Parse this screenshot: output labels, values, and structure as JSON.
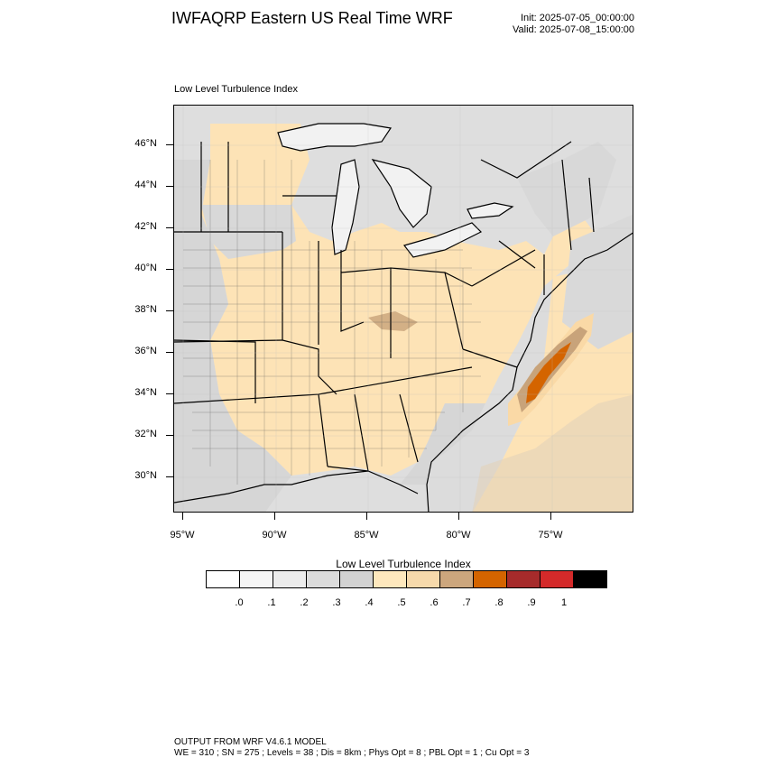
{
  "header": {
    "title": "IWFAQRP Eastern US Real Time WRF",
    "init": "Init: 2025-07-05_00:00:00",
    "valid": "Valid: 2025-07-08_15:00:00"
  },
  "plot": {
    "title": "Low Level Turbulence Index",
    "lat_labels": [
      "46°N",
      "44°N",
      "42°N",
      "40°N",
      "38°N",
      "36°N",
      "34°N",
      "32°N",
      "30°N"
    ],
    "lon_labels": [
      "95°W",
      "90°W",
      "85°W",
      "80°W",
      "75°W"
    ],
    "colors": {
      "ocean": "#dcdcdc",
      "lake": "#f2f2f2",
      "high_turb": "#d46400",
      "mid_turb": "#c8a37a",
      "moderate": "#fde3b6"
    }
  },
  "legend": {
    "title": "Low Level Turbulence Index",
    "colors": [
      "#ffffff",
      "#f5f5f5",
      "#ececec",
      "#dcdcdc",
      "#d2d2d2",
      "#fee8bd",
      "#f6d9ab",
      "#cca67d",
      "#d46400",
      "#a62b2b",
      "#d42a2a",
      "#000000"
    ],
    "ticks": [
      ".0",
      ".1",
      ".2",
      ".3",
      ".4",
      ".5",
      ".6",
      ".7",
      ".8",
      ".9",
      "1"
    ]
  },
  "footer": {
    "line1": "OUTPUT FROM WRF V4.6.1 MODEL",
    "line2": "WE = 310 ; SN = 275 ; Levels = 38 ; Dis = 8km ; Phys Opt = 8 ; PBL Opt = 1 ; Cu Opt = 3"
  }
}
